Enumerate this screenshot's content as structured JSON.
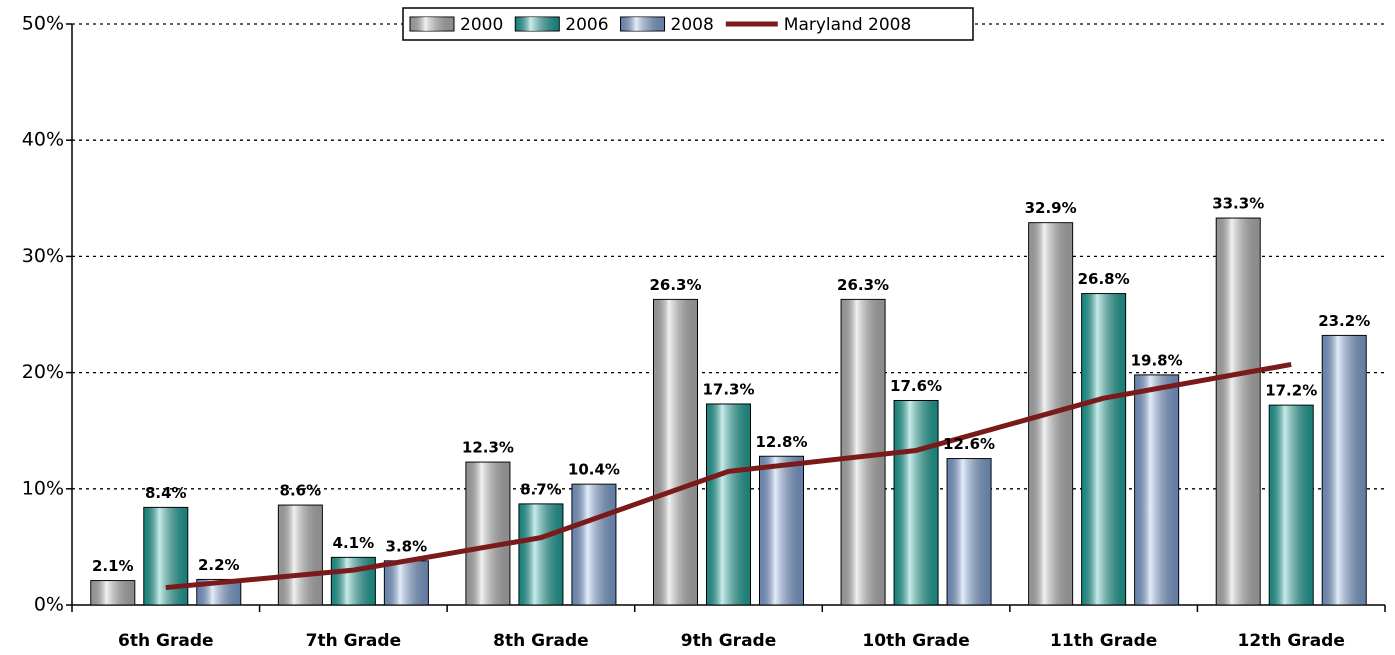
{
  "chart_data": {
    "type": "bar",
    "categories": [
      "6th Grade",
      "7th Grade",
      "8th Grade",
      "9th Grade",
      "10th Grade",
      "11th Grade",
      "12th Grade"
    ],
    "series": [
      {
        "name": "2000",
        "color": "#c8c8c8",
        "values": [
          2.1,
          8.6,
          12.3,
          26.3,
          26.3,
          32.9,
          33.3
        ],
        "value_labels": [
          "2.1%",
          "8.6%",
          "12.3%",
          "26.3%",
          "26.3%",
          "32.9%",
          "33.3%"
        ]
      },
      {
        "name": "2006",
        "color": "#1fb5aa",
        "values": [
          8.4,
          4.1,
          8.7,
          17.3,
          17.6,
          26.8,
          17.2
        ],
        "value_labels": [
          "8.4%",
          "4.1%",
          "8.7%",
          "17.3%",
          "17.6%",
          "26.8%",
          "17.2%"
        ]
      },
      {
        "name": "2008",
        "color": "#8db4ee",
        "values": [
          2.2,
          3.8,
          10.4,
          12.8,
          12.6,
          19.8,
          23.2
        ],
        "value_labels": [
          "2.2%",
          "3.8%",
          "10.4%",
          "12.8%",
          "12.6%",
          "19.8%",
          "23.2%"
        ]
      },
      {
        "name": "Maryland 2008",
        "type": "line",
        "color": "#7b1a1a",
        "values": [
          1.5,
          3.0,
          5.8,
          11.5,
          13.3,
          17.8,
          20.7
        ]
      }
    ],
    "ylim": [
      0,
      50
    ],
    "yticks": [
      {
        "value": 0,
        "label": "0%"
      },
      {
        "value": 10,
        "label": "10%"
      },
      {
        "value": 20,
        "label": "20%"
      },
      {
        "value": 30,
        "label": "30%"
      },
      {
        "value": 40,
        "label": "40%"
      },
      {
        "value": 50,
        "label": "50%"
      }
    ],
    "grid": true
  }
}
